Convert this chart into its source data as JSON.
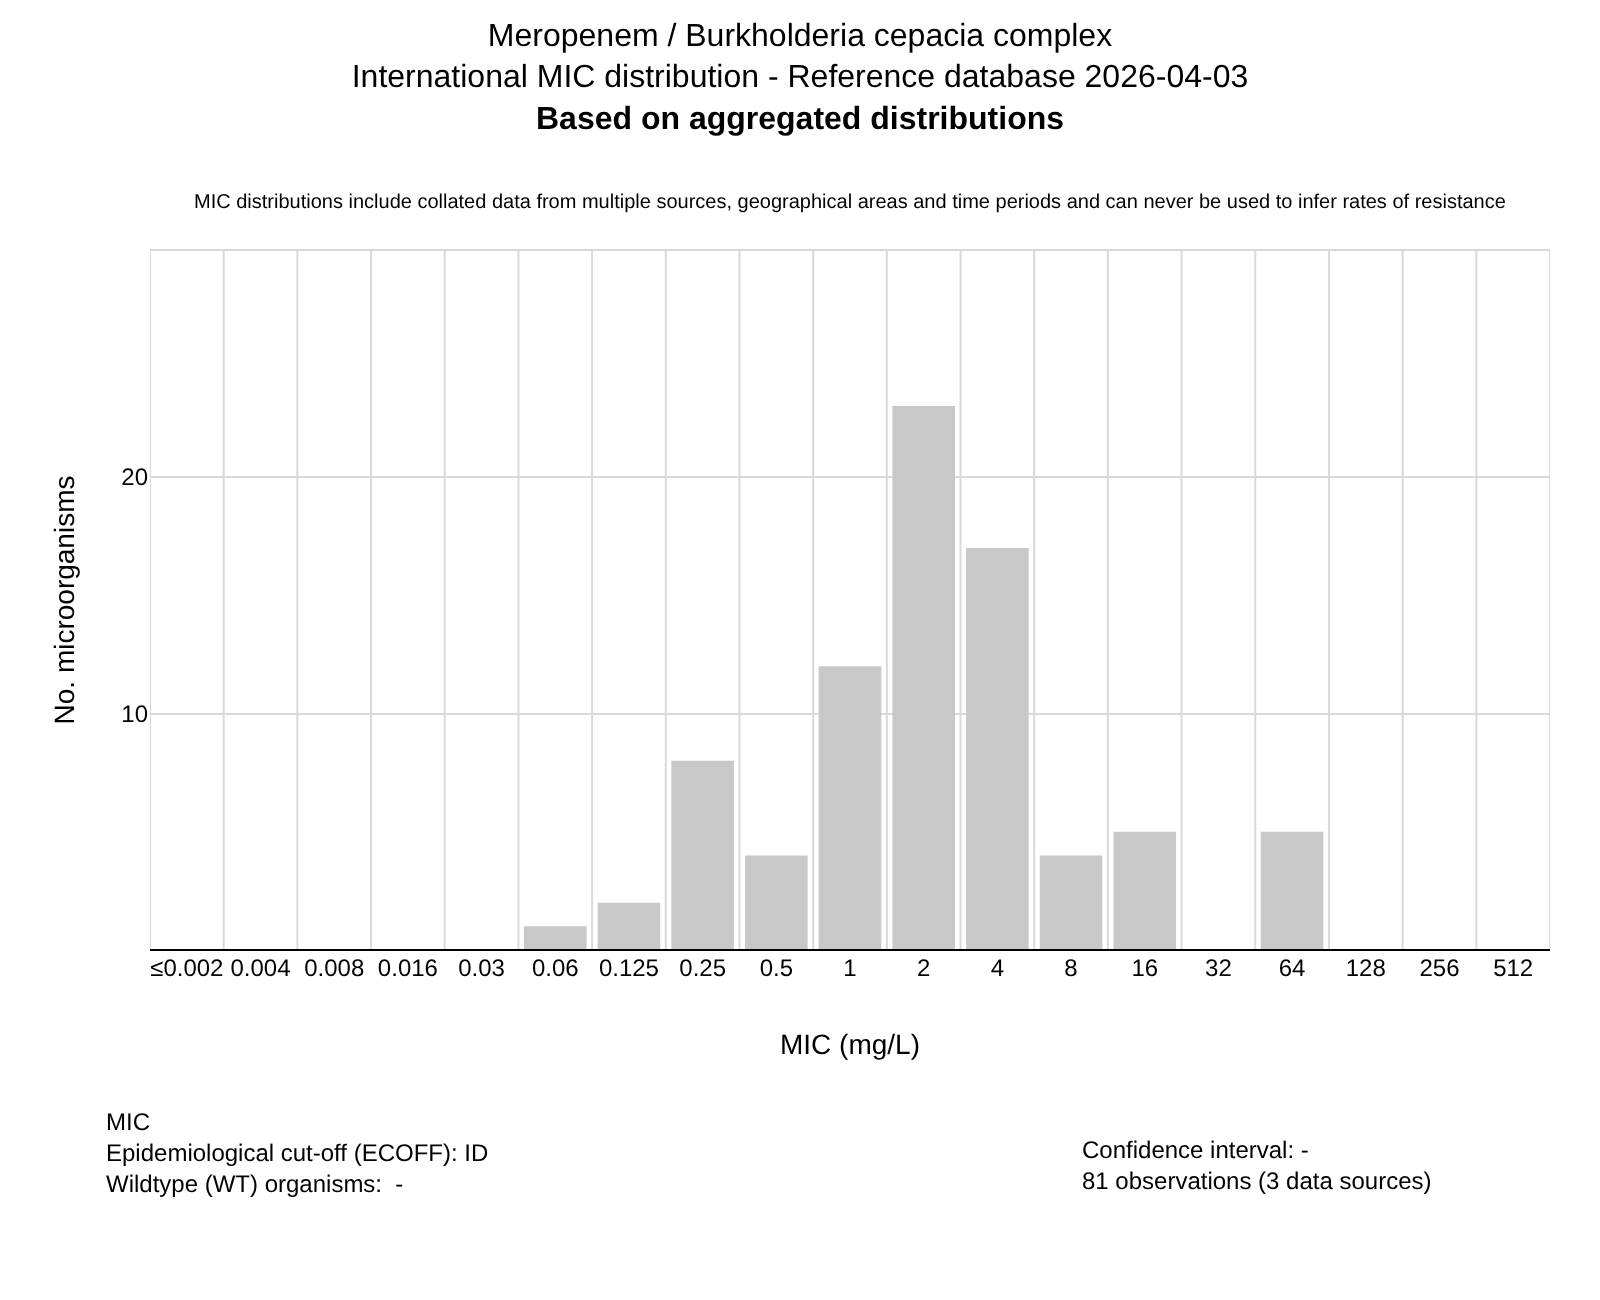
{
  "chart_data": {
    "type": "bar",
    "title": "Meropenem / Burkholderia cepacia complex\nInternational MIC distribution - Reference database 2026-04-03",
    "subtitle": "Based on aggregated distributions",
    "xlabel": "MIC (mg/L)",
    "ylabel": "No. microorganisms",
    "categories": [
      "≤0.002",
      "0.004",
      "0.008",
      "0.016",
      "0.03",
      "0.06",
      "0.125",
      "0.25",
      "0.5",
      "1",
      "2",
      "4",
      "8",
      "16",
      "32",
      "64",
      "128",
      "256",
      "512"
    ],
    "values": [
      0,
      0,
      0,
      0,
      0,
      1,
      2,
      8,
      4,
      12,
      23,
      17,
      4,
      5,
      0,
      5,
      0,
      0,
      0
    ],
    "color": "#c8c8c8",
    "ylim": [
      0,
      29.6
    ],
    "yticks": [
      10,
      20
    ],
    "grid": true,
    "annotations": [
      "MIC distributions include collated data from multiple sources, geographical areas and time periods and can never be used to infer rates of resistance",
      "MIC\nEpidemiological cut-off (ECOFF): ID\nWildtype (WT) organisms:  -",
      "Confidence interval: -\n81 observations (3 data sources)"
    ]
  }
}
